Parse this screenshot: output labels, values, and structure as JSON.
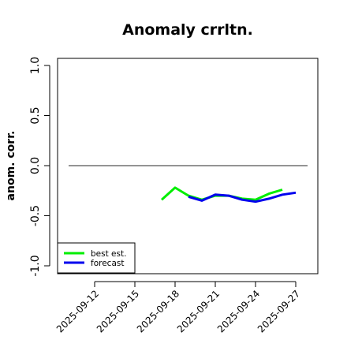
{
  "chart_data": {
    "type": "line",
    "title": "Anomaly crrltn.",
    "xlabel": "",
    "ylabel": "anom. corr.",
    "ylim": [
      -1.0,
      1.0
    ],
    "yticks": [
      "-1.0",
      "-0.5",
      "0.0",
      "0.5",
      "1.0"
    ],
    "ytick_values": [
      -1.0,
      -0.5,
      0.0,
      0.5,
      1.0
    ],
    "xlim": [
      "2025-09-10",
      "2025-09-28"
    ],
    "xticks": [
      {
        "label": "2025-09-12",
        "color": "#000000"
      },
      {
        "label": "2025-09-15",
        "color": "#000000"
      },
      {
        "label": "2025-09-18",
        "color": "#228b22"
      },
      {
        "label": "2025-09-21",
        "color": "#000000"
      },
      {
        "label": "2025-09-24",
        "color": "#000000"
      },
      {
        "label": "2025-09-27",
        "color": "#000000"
      }
    ],
    "reference_line": 0.0,
    "grid": false,
    "legend_position": "bottom-left",
    "series": [
      {
        "name": "best est.",
        "color": "#00ee00",
        "x": [
          "2025-09-17",
          "2025-09-18",
          "2025-09-19",
          "2025-09-20",
          "2025-09-21",
          "2025-09-22",
          "2025-09-23",
          "2025-09-24",
          "2025-09-25",
          "2025-09-26"
        ],
        "y": [
          -0.34,
          -0.22,
          -0.3,
          -0.34,
          -0.3,
          -0.3,
          -0.33,
          -0.34,
          -0.28,
          -0.24
        ]
      },
      {
        "name": "forecast",
        "color": "#0000ee",
        "x": [
          "2025-09-19",
          "2025-09-20",
          "2025-09-21",
          "2025-09-22",
          "2025-09-23",
          "2025-09-24",
          "2025-09-25",
          "2025-09-26",
          "2025-09-27"
        ],
        "y": [
          -0.31,
          -0.35,
          -0.29,
          -0.3,
          -0.34,
          -0.36,
          -0.33,
          -0.29,
          -0.27
        ]
      }
    ]
  }
}
